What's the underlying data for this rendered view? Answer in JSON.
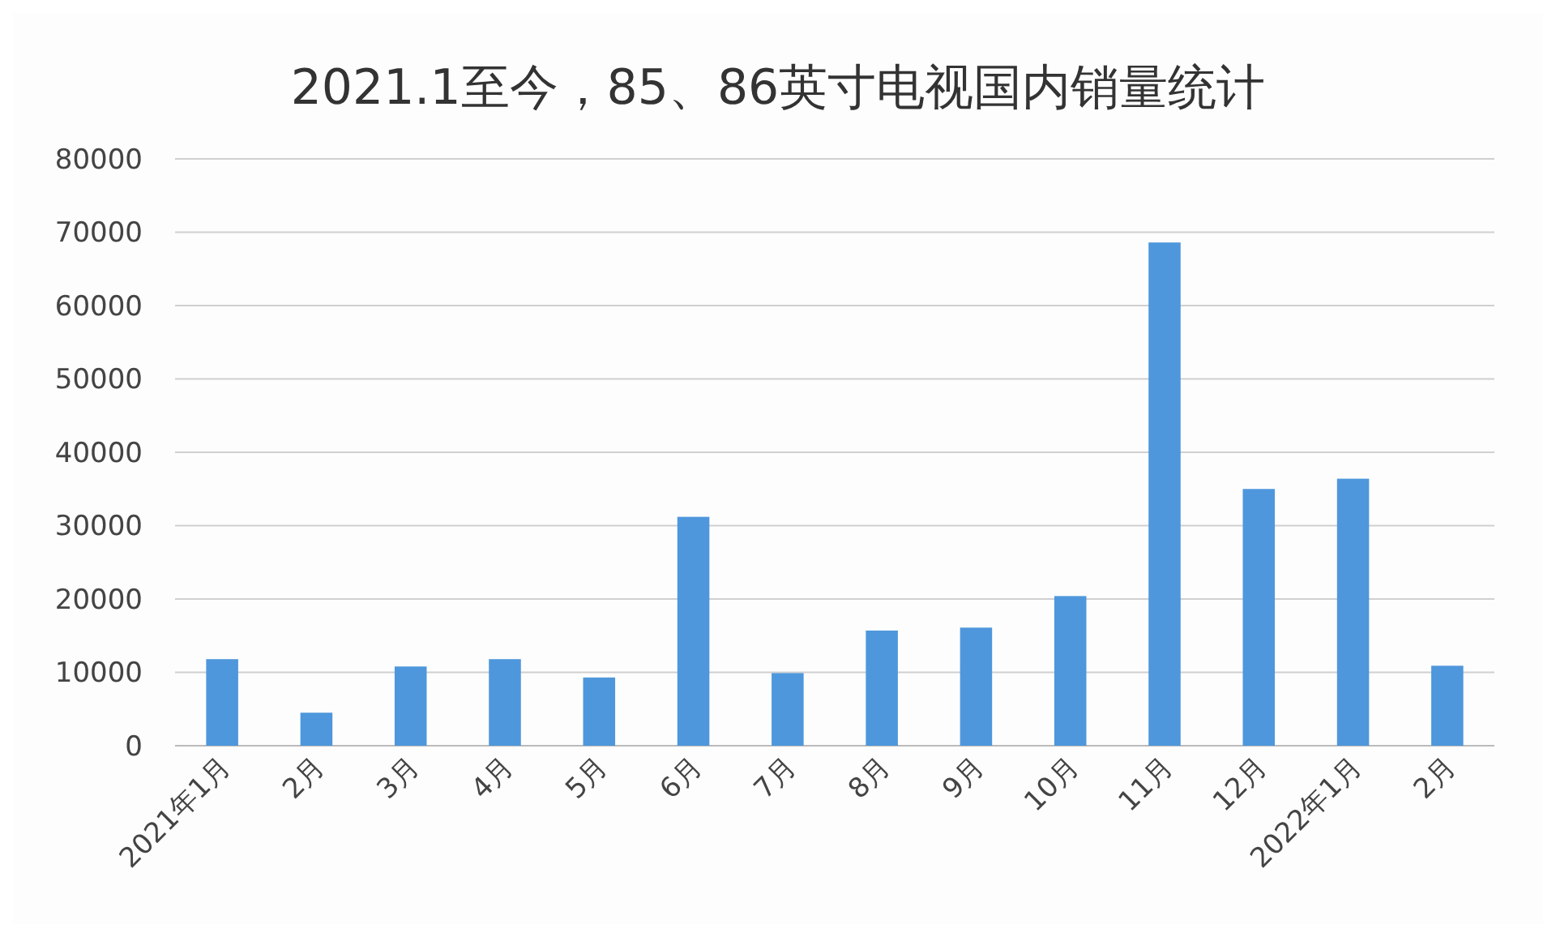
{
  "chart_data": {
    "type": "bar",
    "title": "2021.1至今，85、86英寸电视国内销量统计",
    "categories": [
      "2021年1月",
      "2月",
      "3月",
      "4月",
      "5月",
      "6月",
      "7月",
      "8月",
      "9月",
      "10月",
      "11月",
      "12月",
      "2022年1月",
      "2月"
    ],
    "values": [
      11800,
      4500,
      10800,
      11800,
      9300,
      31200,
      9900,
      15700,
      16100,
      20400,
      68600,
      35000,
      36400,
      10900
    ],
    "color": "#4e97dc",
    "ylim": [
      0,
      80000
    ],
    "yticks": [
      0,
      10000,
      20000,
      30000,
      40000,
      50000,
      60000,
      70000,
      80000
    ],
    "grid": "y"
  }
}
